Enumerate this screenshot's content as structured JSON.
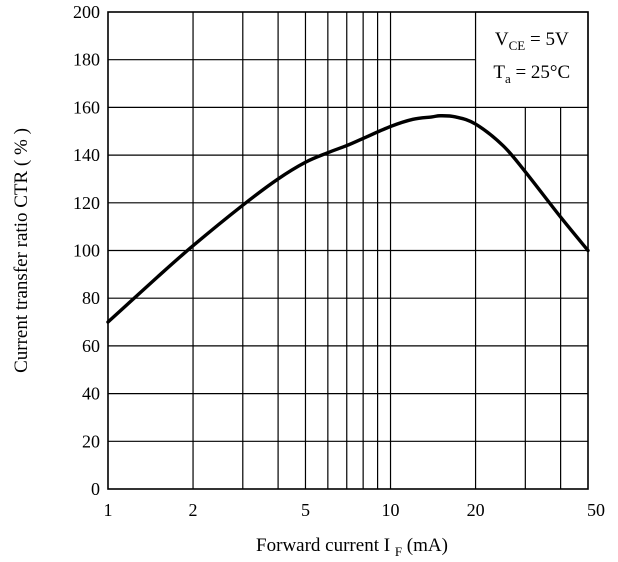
{
  "chart_data": {
    "type": "line",
    "title": "",
    "xlabel": {
      "prefix": "Forward current I",
      "subscript": "F",
      "suffix": "(mA)"
    },
    "ylabel": "Current transfer ratio CTR ( % )",
    "x_scale": "log",
    "xlim": [
      1,
      50
    ],
    "ylim": [
      0,
      200
    ],
    "x_ticks": [
      1,
      2,
      5,
      10,
      20,
      50
    ],
    "x_tick_labels": [
      "1",
      "2",
      "5",
      "10",
      "20",
      "50"
    ],
    "x_minor_gridlines": [
      3,
      4,
      6,
      7,
      8,
      9,
      30,
      40
    ],
    "y_ticks": [
      0,
      20,
      40,
      60,
      80,
      100,
      120,
      140,
      160,
      180,
      200
    ],
    "y_tick_labels": [
      "0",
      "20",
      "40",
      "60",
      "80",
      "100",
      "120",
      "140",
      "160",
      "180",
      "200"
    ],
    "grid": true,
    "conditions": [
      {
        "symbol": "V",
        "subscript": "CE",
        "value": " = 5V"
      },
      {
        "symbol": "T",
        "subscript": "a",
        "value": " = 25°C"
      }
    ],
    "conditions_box_position": "top-right",
    "series": [
      {
        "color": "#000000",
        "x": [
          1,
          1.5,
          2,
          3,
          4,
          5,
          6,
          7,
          8,
          10,
          12,
          14,
          15,
          17,
          20,
          25,
          30,
          40,
          50
        ],
        "y": [
          70,
          89,
          102,
          119,
          130,
          137,
          141,
          144,
          147,
          152,
          155,
          156,
          156.5,
          156,
          153,
          144,
          133,
          114,
          100
        ]
      }
    ]
  }
}
